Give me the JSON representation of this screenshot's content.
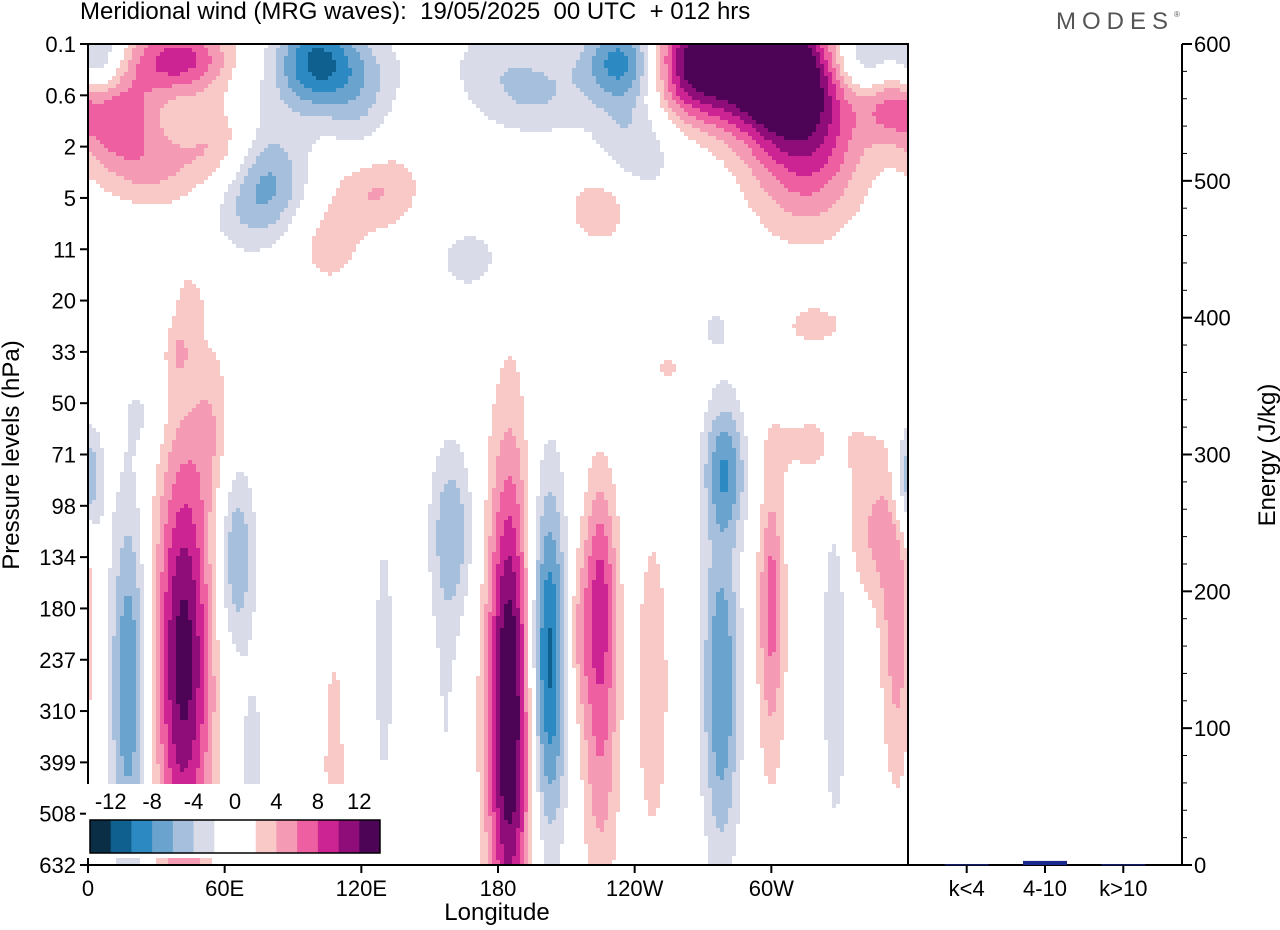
{
  "header": {
    "title": "Meridional wind (MRG waves):  19/05/2025  00 UTC  + 012 hrs",
    "brand": "MODES",
    "brand_mark": "®"
  },
  "colors": {
    "neg": [
      "#0b2e47",
      "#0f5f8f",
      "#2d89c2",
      "#6aa3ce",
      "#a5bfdd",
      "#d9dbe9"
    ],
    "pos": [
      "#f9c9c7",
      "#f59ab4",
      "#ed5fa1",
      "#cd2494",
      "#8f0d79",
      "#4d0356"
    ],
    "zero": "#ffffff"
  },
  "chart_data": [
    {
      "type": "heatmap",
      "title": "Meridional wind (MRG waves):  19/05/2025  00 UTC  + 012 hrs",
      "xlabel": "Longitude",
      "ylabel": "Pressure levels (hPa)",
      "x_ticks": [
        "0",
        "60E",
        "120E",
        "180",
        "120W",
        "60W"
      ],
      "x_tick_degrees": [
        0,
        60,
        120,
        180,
        240,
        300
      ],
      "xlim": [
        0,
        360
      ],
      "y_ticks": [
        "0.1",
        "0.6",
        "2",
        "5",
        "11",
        "20",
        "33",
        "50",
        "71",
        "98",
        "134",
        "180",
        "237",
        "310",
        "399",
        "508",
        "632"
      ],
      "colorbar": {
        "labels": [
          "-12",
          "-8",
          "-4",
          "0",
          "4",
          "8",
          "12"
        ],
        "levels": [
          -14,
          -12,
          -10,
          -8,
          -6,
          -4,
          -2,
          2,
          4,
          6,
          8,
          10,
          12,
          14
        ]
      },
      "features": [
        {
          "lon": 18,
          "level": 12.5,
          "amp": -8,
          "wx": 6,
          "wy": 2.6
        },
        {
          "lon": 42,
          "level": 12,
          "amp": 13,
          "wx": 9,
          "wy": 3.0
        },
        {
          "lon": 65,
          "level": 10,
          "amp": -6,
          "wx": 6,
          "wy": 1.3
        },
        {
          "lon": 72,
          "level": 14,
          "amp": -3,
          "wx": 4,
          "wy": 1.2
        },
        {
          "lon": 88,
          "level": 12,
          "amp": -2,
          "wx": 6,
          "wy": 2.5
        },
        {
          "lon": 108,
          "level": 14,
          "amp": 3,
          "wx": 4,
          "wy": 2
        },
        {
          "lon": 130,
          "level": 12,
          "amp": -2.5,
          "wx": 5,
          "wy": 3
        },
        {
          "lon": 160,
          "level": 9.5,
          "amp": -5,
          "wx": 7,
          "wy": 1.2
        },
        {
          "lon": 157,
          "level": 13,
          "amp": -2,
          "wx": 5,
          "wy": 3
        },
        {
          "lon": 185,
          "level": 13,
          "amp": 15,
          "wx": 7,
          "wy": 3.4
        },
        {
          "lon": 202,
          "level": 12,
          "amp": -11,
          "wx": 6,
          "wy": 2.4
        },
        {
          "lon": 225,
          "level": 10.5,
          "amp": 5,
          "wx": 5,
          "wy": 1.5
        },
        {
          "lon": 225,
          "level": 13,
          "amp": 6,
          "wx": 6,
          "wy": 2.6
        },
        {
          "lon": 215,
          "level": 11.5,
          "amp": 3.5,
          "wx": 4,
          "wy": 1.2
        },
        {
          "lon": 248,
          "level": 12.5,
          "amp": 4,
          "wx": 5,
          "wy": 2.2
        },
        {
          "lon": 278,
          "level": 12.5,
          "amp": -8,
          "wx": 6,
          "wy": 2.4
        },
        {
          "lon": 280,
          "level": 8.2,
          "amp": -7,
          "wx": 7,
          "wy": 0.9
        },
        {
          "lon": 300,
          "level": 10.5,
          "amp": 5,
          "wx": 4,
          "wy": 1.5
        },
        {
          "lon": 300,
          "level": 12.5,
          "amp": 3,
          "wx": 5,
          "wy": 2
        },
        {
          "lon": 328,
          "level": 12,
          "amp": -4,
          "wx": 4,
          "wy": 2.5
        },
        {
          "lon": 355,
          "level": 11.5,
          "amp": 5,
          "wx": 5,
          "wy": 2.2
        },
        {
          "lon": 345,
          "level": 9.5,
          "amp": 4,
          "wx": 9,
          "wy": 1
        },
        {
          "lon": 320,
          "level": 7.8,
          "amp": 2.5,
          "wx": 20,
          "wy": 0.6
        },
        {
          "lon": 358,
          "level": 8.5,
          "amp": -4,
          "wx": 4,
          "wy": 0.8
        },
        {
          "lon": 2,
          "level": 8.5,
          "amp": -4,
          "wx": 4,
          "wy": 0.8
        },
        {
          "lon": 55,
          "level": 7.5,
          "amp": 3,
          "wx": 6,
          "wy": 1.2
        },
        {
          "lon": 25,
          "level": 7.2,
          "amp": -2,
          "wx": 7,
          "wy": 0.6
        },
        {
          "lon": 275,
          "level": 5.5,
          "amp": -2,
          "wx": 12,
          "wy": 0.6
        },
        {
          "lon": 320,
          "level": 5.5,
          "amp": 2.5,
          "wx": 14,
          "wy": 0.4
        },
        {
          "lon": 210,
          "level": 6,
          "amp": 2,
          "wx": 10,
          "wy": 0.3
        },
        {
          "lon": 45,
          "level": 5,
          "amp": 2,
          "wx": 5,
          "wy": 0.5
        },
        {
          "lon": 103,
          "level": 4.2,
          "amp": 4,
          "wx": 12,
          "wy": 0.8
        },
        {
          "lon": 168,
          "level": 4.2,
          "amp": -3,
          "wx": 12,
          "wy": 0.5
        },
        {
          "lon": 100,
          "level": 4.8,
          "amp": -2,
          "wx": 12,
          "wy": 0.6
        },
        {
          "lon": 75,
          "level": 2.8,
          "amp": -7,
          "wx": 16,
          "wy": 0.8
        },
        {
          "lon": 125,
          "level": 2.8,
          "amp": 5,
          "wx": 14,
          "wy": 0.6
        },
        {
          "lon": 225,
          "level": 3.2,
          "amp": 4,
          "wx": 10,
          "wy": 0.5
        },
        {
          "lon": 120,
          "level": 1.5,
          "amp": -3,
          "wx": 10,
          "wy": 1
        },
        {
          "lon": 65,
          "level": 1.8,
          "amp": -3.5,
          "wx": 14,
          "wy": 0.8
        },
        {
          "lon": 180,
          "level": 0.5,
          "amp": -3,
          "wx": 16,
          "wy": 0.8
        },
        {
          "lon": 110,
          "level": 0.5,
          "amp": -3,
          "wx": 22,
          "wy": 0.6
        },
        {
          "lon": 13,
          "level": 1.4,
          "amp": 7,
          "wx": 12,
          "wy": 0.7
        },
        {
          "lon": 30,
          "level": 2.4,
          "amp": 4,
          "wx": 16,
          "wy": 0.6
        },
        {
          "lon": 60,
          "level": 2.0,
          "amp": 8,
          "wx": 12,
          "wy": 0.7
        },
        {
          "lon": 40,
          "level": 0.3,
          "amp": 9,
          "wx": 16,
          "wy": 0.5
        },
        {
          "lon": 100,
          "level": 0.3,
          "amp": -8,
          "wx": 12,
          "wy": 0.7
        },
        {
          "lon": 5,
          "level": 0.3,
          "amp": -6,
          "wx": 8,
          "wy": 0.5
        },
        {
          "lon": 238,
          "level": 0.3,
          "amp": -12,
          "wx": 14,
          "wy": 0.6
        },
        {
          "lon": 262,
          "level": 0.4,
          "amp": 15,
          "wx": 18,
          "wy": 0.8
        },
        {
          "lon": 300,
          "level": 0.5,
          "amp": 14,
          "wx": 16,
          "wy": 0.8
        },
        {
          "lon": 315,
          "level": 1.6,
          "amp": 10,
          "wx": 18,
          "wy": 1.3
        },
        {
          "lon": 340,
          "level": 0.3,
          "amp": -6,
          "wx": 10,
          "wy": 0.5
        },
        {
          "lon": 352,
          "level": 1.2,
          "amp": 5,
          "wx": 9,
          "wy": 0.5
        },
        {
          "lon": 242,
          "level": 1.6,
          "amp": -5,
          "wx": 14,
          "wy": 0.9
        },
        {
          "lon": 200,
          "level": 1.0,
          "amp": -3,
          "wx": 14,
          "wy": 0.6
        },
        {
          "lon": 255,
          "level": 6.3,
          "amp": 2.5,
          "wx": 6,
          "wy": 0.3
        },
        {
          "lon": 40,
          "level": 6.0,
          "amp": 2.5,
          "wx": 4,
          "wy": 0.4
        }
      ]
    },
    {
      "type": "bar",
      "ylabel": "Energy (J/kg)",
      "categories": [
        "k<4",
        "4-10",
        "k>10"
      ],
      "values": [
        0.5,
        3,
        0.5
      ],
      "ylim": [
        0,
        600
      ],
      "y_ticks": [
        "0",
        "100",
        "200",
        "300",
        "400",
        "500",
        "600"
      ],
      "bar_color": "#1a2a8c"
    }
  ]
}
